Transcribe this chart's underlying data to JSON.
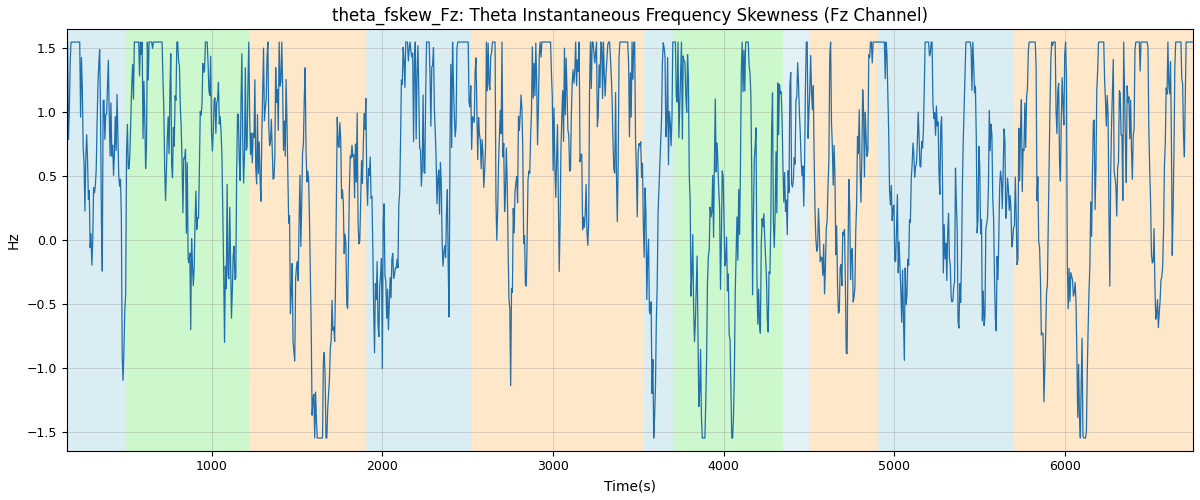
{
  "title": "theta_fskew_Fz: Theta Instantaneous Frequency Skewness (Fz Channel)",
  "xlabel": "Time(s)",
  "ylabel": "Hz",
  "ylim": [
    -1.65,
    1.65
  ],
  "xlim": [
    150,
    6750
  ],
  "line_color": "#1f6fad",
  "line_width": 0.9,
  "bg_bands": [
    {
      "xmin": 150,
      "xmax": 490,
      "color": "#add8e6",
      "alpha": 0.45
    },
    {
      "xmin": 490,
      "xmax": 1220,
      "color": "#90ee90",
      "alpha": 0.45
    },
    {
      "xmin": 1220,
      "xmax": 1900,
      "color": "#ffd59e",
      "alpha": 0.55
    },
    {
      "xmin": 1900,
      "xmax": 2520,
      "color": "#add8e6",
      "alpha": 0.45
    },
    {
      "xmin": 2520,
      "xmax": 3530,
      "color": "#ffd59e",
      "alpha": 0.55
    },
    {
      "xmin": 3530,
      "xmax": 3700,
      "color": "#add8e6",
      "alpha": 0.45
    },
    {
      "xmin": 3700,
      "xmax": 4350,
      "color": "#90ee90",
      "alpha": 0.45
    },
    {
      "xmin": 4350,
      "xmax": 4500,
      "color": "#add8e6",
      "alpha": 0.35
    },
    {
      "xmin": 4500,
      "xmax": 4900,
      "color": "#ffd59e",
      "alpha": 0.55
    },
    {
      "xmin": 4900,
      "xmax": 5700,
      "color": "#add8e6",
      "alpha": 0.45
    },
    {
      "xmin": 5700,
      "xmax": 6750,
      "color": "#ffd59e",
      "alpha": 0.55
    }
  ],
  "seed": 17,
  "n_points": 1300,
  "ar_coef": 0.92,
  "noise_std": 0.38,
  "title_fontsize": 12,
  "label_fontsize": 10,
  "tick_fontsize": 9,
  "yticks": [
    -1.5,
    -1.0,
    -0.5,
    0.0,
    0.5,
    1.0,
    1.5
  ],
  "xticks": [
    1000,
    2000,
    3000,
    4000,
    5000,
    6000
  ]
}
